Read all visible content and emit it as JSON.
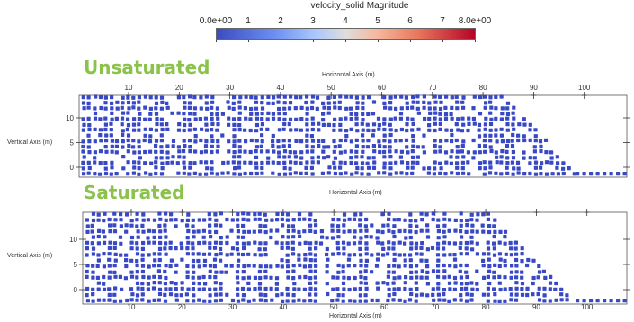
{
  "colorbar": {
    "title": "velocity_solid Magnitude",
    "min_label": "0.0e+00",
    "max_label": "8.0e+00",
    "tick_labels": [
      "1",
      "2",
      "3",
      "4",
      "5",
      "6",
      "7"
    ],
    "colors": [
      "#3b4cc0",
      "#dddddd",
      "#b40426"
    ]
  },
  "panels": [
    {
      "label": "Unsaturated",
      "x_axis_title": "Horizontal Axis (m)",
      "y_axis_title": "Vertical Axis (m)",
      "x_ticks": [
        "10",
        "20",
        "30",
        "40",
        "50",
        "60",
        "70",
        "80",
        "90",
        "100"
      ],
      "y_ticks": [
        "0",
        "5",
        "10"
      ],
      "particle_color": "#3949c6"
    },
    {
      "label": "Saturated",
      "x_axis_title": "Horizontal Axis (m)",
      "y_axis_title": "Vertical Axis (m)",
      "x_ticks": [
        "10",
        "20",
        "30",
        "40",
        "50",
        "60",
        "70",
        "80",
        "90",
        "100"
      ],
      "y_ticks": [
        "0",
        "5",
        "10"
      ],
      "particle_color": "#3949c6"
    }
  ]
}
